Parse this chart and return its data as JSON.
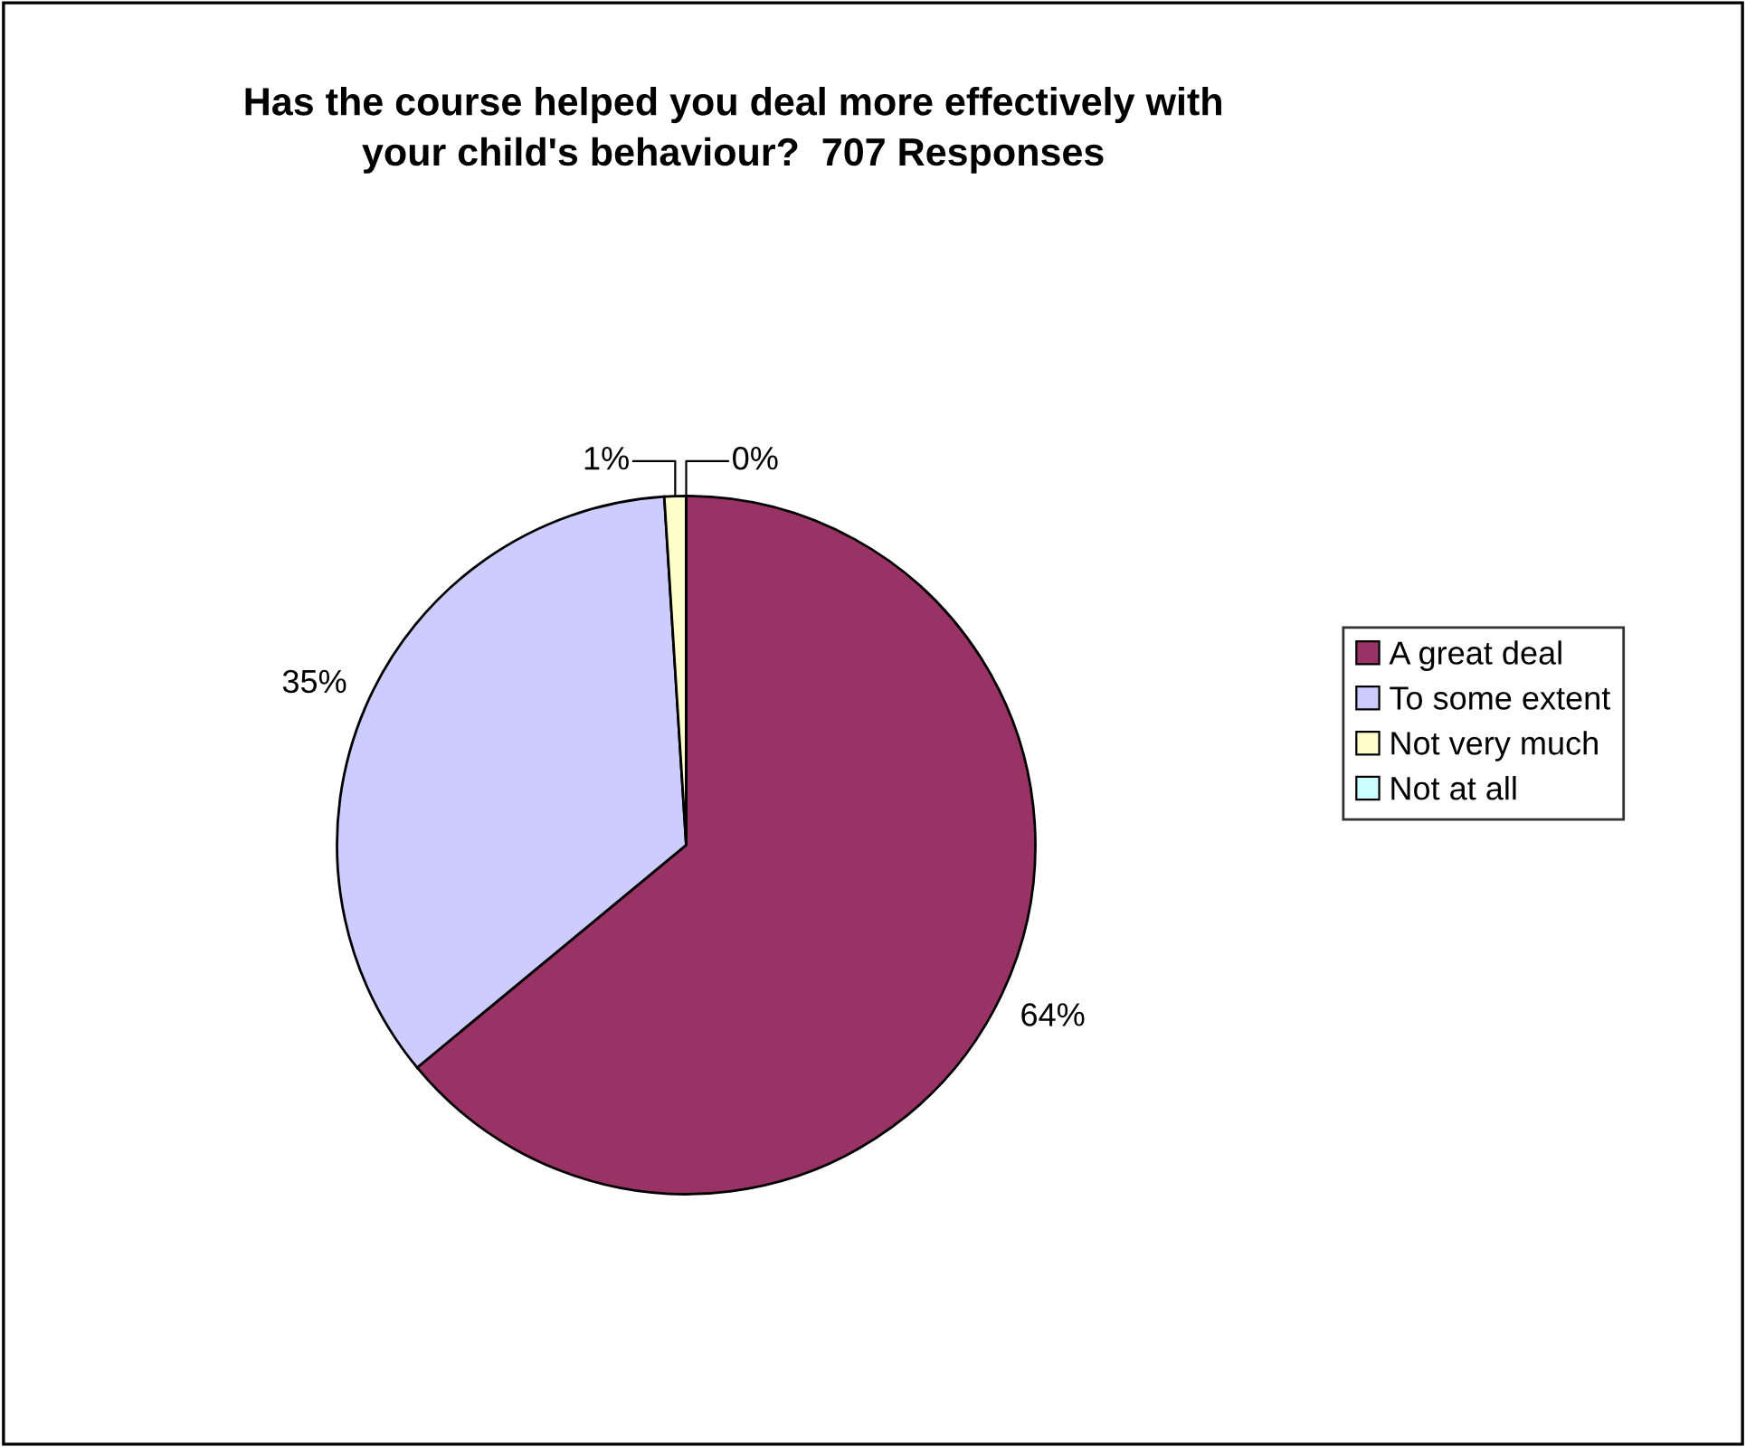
{
  "chart_data": {
    "type": "pie",
    "title": "Has the course helped you deal more effectively with\nyour child's behaviour?  707 Responses",
    "categories": [
      "A great deal",
      "To some extent",
      "Not very much",
      "Not at all"
    ],
    "values": [
      64,
      35,
      1,
      0
    ],
    "colors": [
      "#993366",
      "#ccccff",
      "#ffffcc",
      "#ccffff"
    ],
    "value_labels": [
      "64%",
      "35%",
      "1%",
      "0%"
    ],
    "legend": "right"
  }
}
